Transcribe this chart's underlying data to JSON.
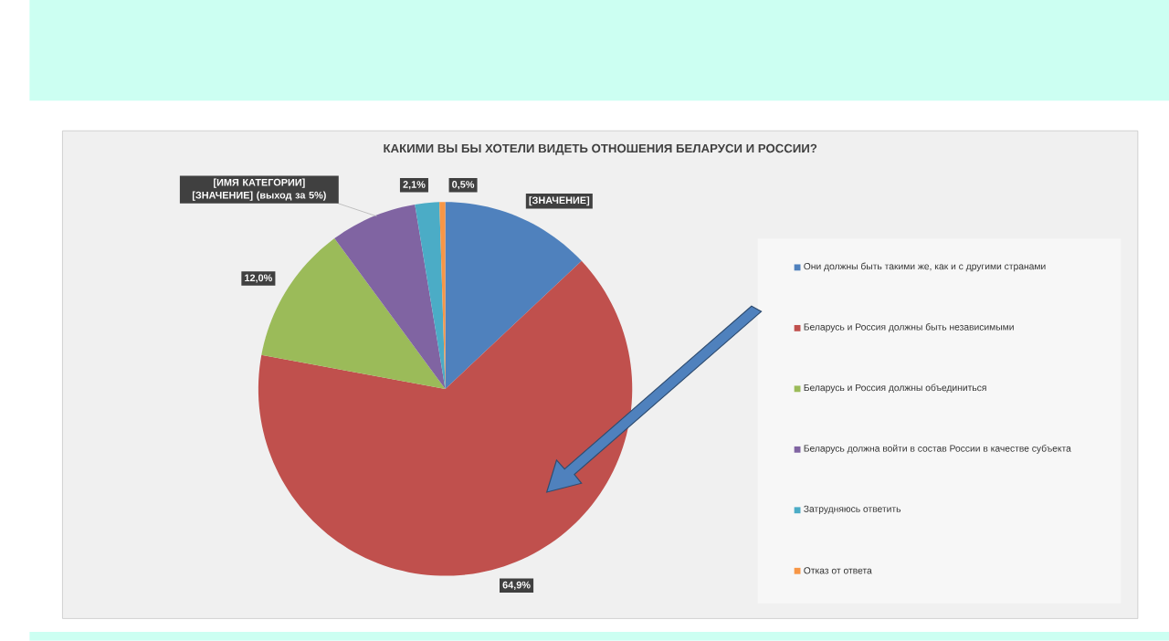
{
  "chart_data": {
    "type": "pie",
    "title": "КАКИМИ ВЫ БЫ ХОТЕЛИ ВИДЕТЬ ОТНОШЕНИЯ БЕЛАРУСИ И РОССИИ?",
    "categories": [
      "Они должны быть такими же, как и с другими странами",
      "Беларусь и Россия должны быть независимыми",
      "Беларусь и Россия должны объединиться",
      "Беларусь должна войти в состав России в качестве субъекта",
      "Затрудняюсь ответить",
      "Отказ от ответа"
    ],
    "values": [
      13.0,
      64.9,
      12.0,
      7.5,
      2.1,
      0.5
    ],
    "colors": [
      "#4f81bd",
      "#c0504d",
      "#9bbb59",
      "#8064a2",
      "#4bacc6",
      "#f79646"
    ],
    "value_labels": [
      "[ЗНАЧЕНИЕ]",
      "64,9%",
      "12,0%",
      "[ИМЯ КАТЕГОРИИ] [ЗНАЧЕНИЕ] (выход за 5%)",
      "2,1%",
      "0,5%"
    ],
    "legend": "right"
  }
}
